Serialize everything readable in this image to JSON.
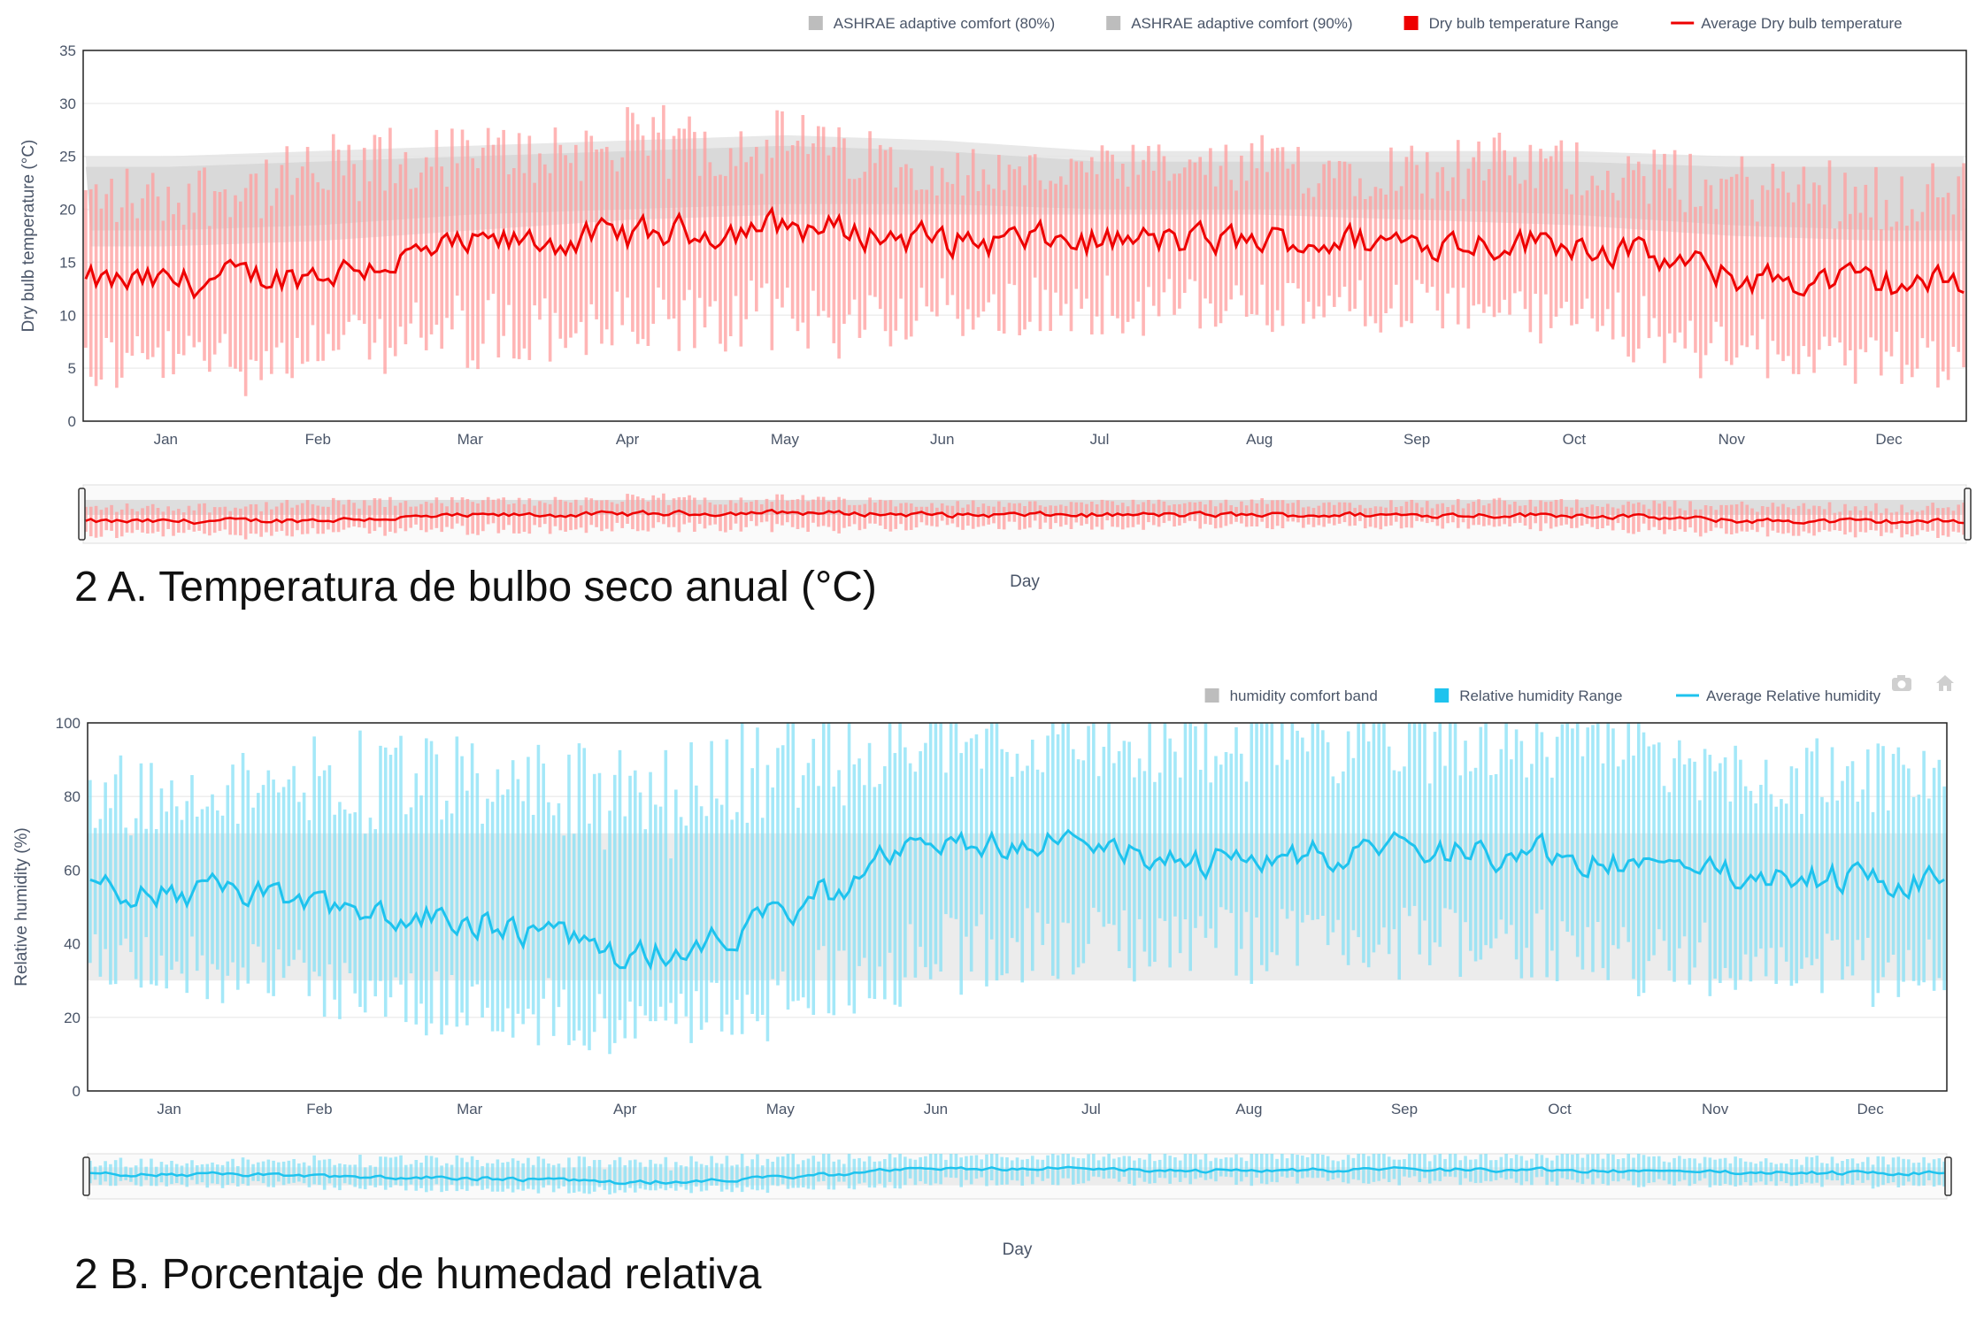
{
  "captions": {
    "a": "2 A. Temperatura de bulbo seco anual (°C)",
    "b": "2 B. Porcentaje de humedad relativa"
  },
  "colors": {
    "comfort_band": "#d9d9d9",
    "temp_range": "#ff9c9c",
    "temp_avg": "#ee0000",
    "hum_range": "#86e0f5",
    "hum_avg": "#1ec3ee",
    "axis_text": "#4a5568",
    "grid": "#eeeeee"
  },
  "toolbar_icons": [
    "camera-icon",
    "home-icon"
  ],
  "chart_data": [
    {
      "type": "bar",
      "subtype": "daily range bars with average line and comfort band",
      "ylabel": "Dry bulb temperature (°C)",
      "xlabel": "Day",
      "ylim": [
        0,
        35
      ],
      "yticks": [
        0,
        5,
        10,
        15,
        20,
        25,
        30,
        35
      ],
      "months": [
        "Jan",
        "Feb",
        "Mar",
        "Apr",
        "May",
        "Jun",
        "Jul",
        "Aug",
        "Sep",
        "Oct",
        "Nov",
        "Dec"
      ],
      "legend_position": "top-right",
      "range_slider": true,
      "legend": [
        {
          "label": "ASHRAE adaptive comfort (80%)",
          "color": "#bdbdbd",
          "symbol": "square"
        },
        {
          "label": "ASHRAE adaptive comfort (90%)",
          "color": "#bdbdbd",
          "symbol": "square"
        },
        {
          "label": "Dry bulb temperature Range",
          "color": "#ee0000",
          "symbol": "square"
        },
        {
          "label": "Average Dry bulb temperature",
          "color": "#ee0000",
          "symbol": "line"
        }
      ],
      "comfort_band_monthly": {
        "outer_low": [
          16.5,
          17,
          18,
          19,
          19.5,
          19.5,
          19.5,
          19.5,
          19,
          18.5,
          17.5,
          17
        ],
        "outer_high": [
          25,
          25.5,
          26,
          26.5,
          27,
          26.5,
          25.5,
          25.5,
          25.5,
          25.5,
          25,
          25
        ],
        "inner_low": [
          18,
          18.5,
          19.5,
          20,
          20.5,
          20.5,
          20,
          20,
          20,
          19.5,
          18.5,
          18
        ],
        "inner_high": [
          24,
          24.5,
          25,
          25.5,
          26,
          25.5,
          24.5,
          24.5,
          24.5,
          24.5,
          24,
          24
        ]
      },
      "monthly_summary": {
        "avg": [
          13,
          14,
          16.5,
          17.5,
          18.5,
          17,
          17,
          17,
          17,
          17,
          13.5,
          13
        ],
        "min": [
          6,
          7,
          8.5,
          9.5,
          10,
          10.5,
          11,
          11,
          11,
          10.5,
          7,
          6.5
        ],
        "max": [
          21,
          23,
          25,
          26,
          26.5,
          23.5,
          23.5,
          24,
          24,
          24,
          22,
          21.5
        ]
      }
    },
    {
      "type": "bar",
      "subtype": "daily range bars with average line and comfort band",
      "ylabel": "Relative humidity (%)",
      "xlabel": "Day",
      "ylim": [
        0,
        100
      ],
      "yticks": [
        0,
        20,
        40,
        60,
        80,
        100
      ],
      "months": [
        "Jan",
        "Feb",
        "Mar",
        "Apr",
        "May",
        "Jun",
        "Jul",
        "Aug",
        "Sep",
        "Oct",
        "Nov",
        "Dec"
      ],
      "legend_position": "top-right",
      "range_slider": true,
      "legend": [
        {
          "label": "humidity comfort band",
          "color": "#bdbdbd",
          "symbol": "square"
        },
        {
          "label": "Relative humidity Range",
          "color": "#1ec3ee",
          "symbol": "square"
        },
        {
          "label": "Average Relative humidity",
          "color": "#1ec3ee",
          "symbol": "line"
        }
      ],
      "comfort_band": [
        30,
        70
      ],
      "monthly_summary": {
        "avg": [
          55,
          50,
          47,
          36,
          48,
          70,
          65,
          62,
          66,
          64,
          58,
          57
        ],
        "min": [
          35,
          30,
          25,
          18,
          25,
          40,
          42,
          40,
          42,
          40,
          35,
          33
        ],
        "max": [
          80,
          85,
          82,
          78,
          88,
          98,
          97,
          96,
          97,
          95,
          85,
          85
        ]
      }
    }
  ]
}
